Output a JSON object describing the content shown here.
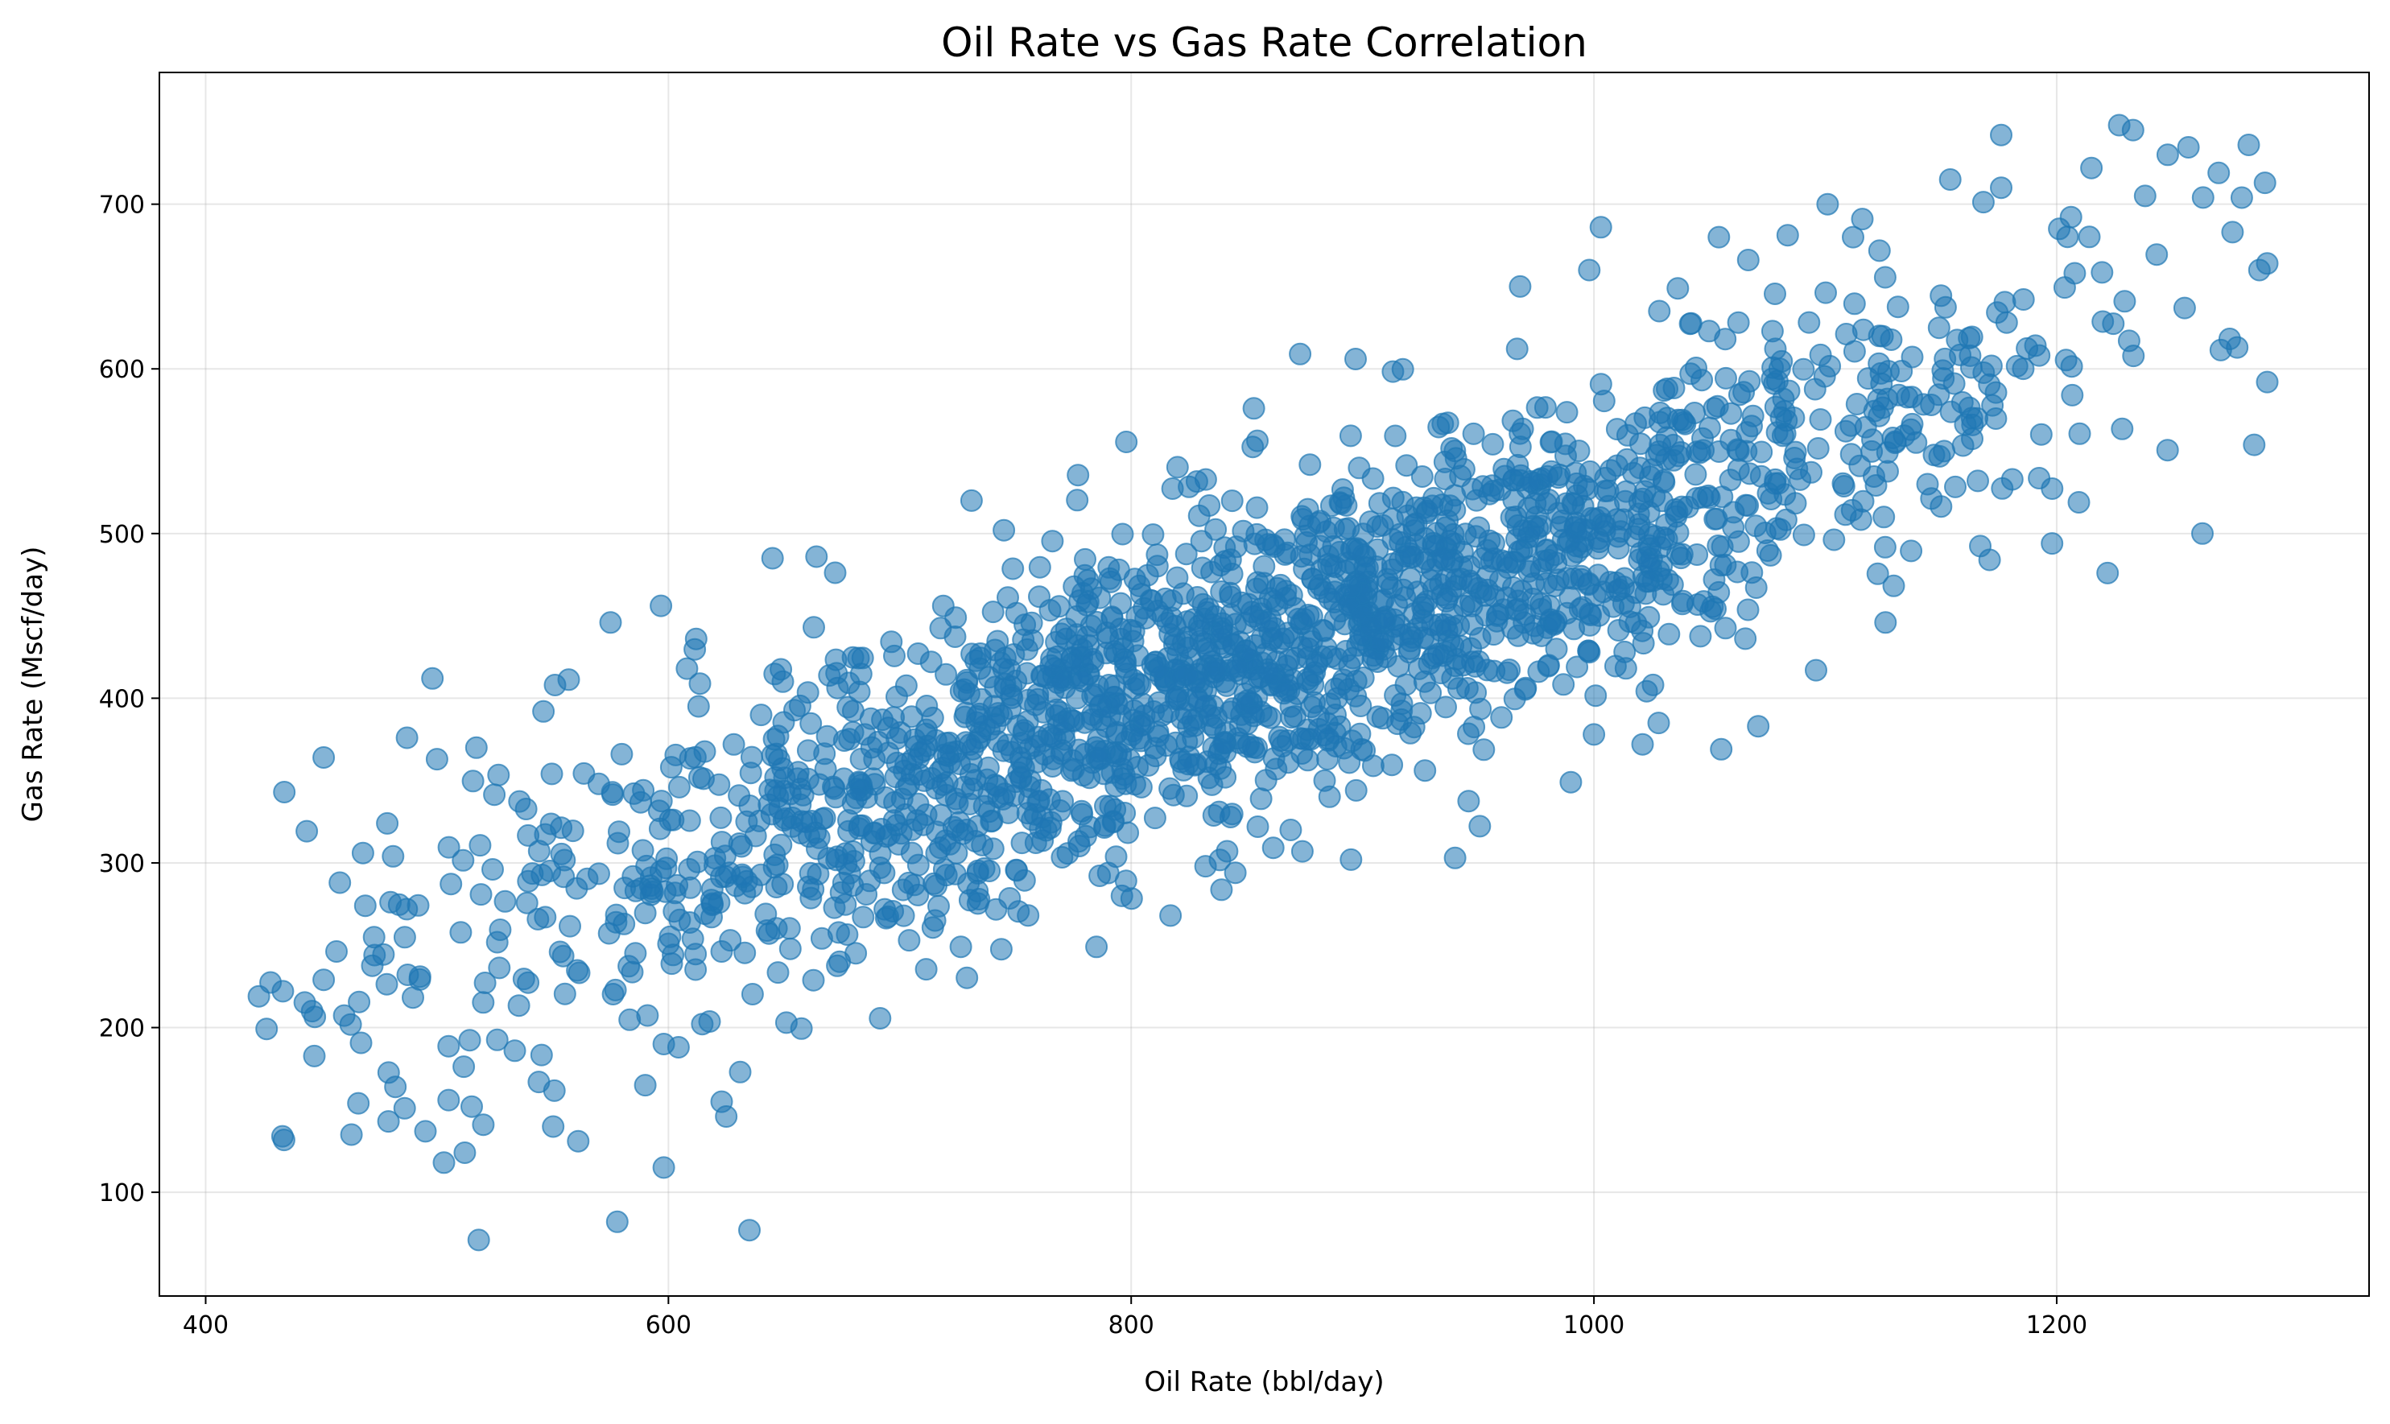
{
  "chart_data": {
    "type": "scatter",
    "title": "Oil Rate vs Gas Rate Correlation",
    "xlabel": "Oil Rate (bbl/day)",
    "ylabel": "Gas Rate (Mscf/day)",
    "xlim": [
      380,
      1335
    ],
    "ylim": [
      37,
      780
    ],
    "xticks": [
      400,
      600,
      800,
      1000,
      1200
    ],
    "yticks": [
      100,
      200,
      300,
      400,
      500,
      600,
      700
    ],
    "grid": true,
    "marker_color": "#1f77b4",
    "marker_alpha": 0.55,
    "series": [
      {
        "trend": {
          "slope": 0.5,
          "intercept": 0,
          "noise_sd": 50,
          "x_min": 420,
          "x_max": 1290,
          "n": 2000
        },
        "points": [
          {
            "x": 423,
            "y": 219
          },
          {
            "x": 434,
            "y": 343
          },
          {
            "x": 446,
            "y": 210
          },
          {
            "x": 451,
            "y": 364
          },
          {
            "x": 451,
            "y": 229
          },
          {
            "x": 458,
            "y": 288
          },
          {
            "x": 463,
            "y": 135
          },
          {
            "x": 466,
            "y": 154
          },
          {
            "x": 468,
            "y": 306
          },
          {
            "x": 469,
            "y": 274
          },
          {
            "x": 473,
            "y": 244
          },
          {
            "x": 479,
            "y": 143
          },
          {
            "x": 481,
            "y": 304
          },
          {
            "x": 482,
            "y": 164
          },
          {
            "x": 486,
            "y": 151
          },
          {
            "x": 487,
            "y": 376
          },
          {
            "x": 495,
            "y": 137
          },
          {
            "x": 498,
            "y": 412
          },
          {
            "x": 500,
            "y": 363
          },
          {
            "x": 503,
            "y": 118
          },
          {
            "x": 505,
            "y": 156
          },
          {
            "x": 512,
            "y": 124
          },
          {
            "x": 515,
            "y": 152
          },
          {
            "x": 517,
            "y": 370
          },
          {
            "x": 518,
            "y": 71
          },
          {
            "x": 520,
            "y": 141
          },
          {
            "x": 544,
            "y": 167
          },
          {
            "x": 546,
            "y": 392
          },
          {
            "x": 551,
            "y": 408
          },
          {
            "x": 561,
            "y": 131
          },
          {
            "x": 575,
            "y": 446
          },
          {
            "x": 590,
            "y": 165
          },
          {
            "x": 598,
            "y": 115
          },
          {
            "x": 598,
            "y": 190
          },
          {
            "x": 608,
            "y": 418
          },
          {
            "x": 612,
            "y": 436
          },
          {
            "x": 623,
            "y": 155
          },
          {
            "x": 625,
            "y": 146
          },
          {
            "x": 631,
            "y": 173
          },
          {
            "x": 635,
            "y": 77
          },
          {
            "x": 645,
            "y": 485
          },
          {
            "x": 651,
            "y": 203
          },
          {
            "x": 664,
            "y": 486
          },
          {
            "x": 731,
            "y": 520
          },
          {
            "x": 745,
            "y": 502
          },
          {
            "x": 785,
            "y": 249
          },
          {
            "x": 796,
            "y": 280
          },
          {
            "x": 817,
            "y": 268
          },
          {
            "x": 845,
            "y": 294
          },
          {
            "x": 853,
            "y": 576
          },
          {
            "x": 873,
            "y": 609
          },
          {
            "x": 874,
            "y": 307
          },
          {
            "x": 895,
            "y": 302
          },
          {
            "x": 897,
            "y": 606
          },
          {
            "x": 940,
            "y": 303
          },
          {
            "x": 990,
            "y": 349
          },
          {
            "x": 998,
            "y": 660
          },
          {
            "x": 1000,
            "y": 378
          },
          {
            "x": 1003,
            "y": 686
          },
          {
            "x": 1021,
            "y": 372
          },
          {
            "x": 1054,
            "y": 680
          },
          {
            "x": 1055,
            "y": 369
          },
          {
            "x": 1071,
            "y": 383
          },
          {
            "x": 1096,
            "y": 417
          },
          {
            "x": 1101,
            "y": 700
          },
          {
            "x": 1112,
            "y": 680
          },
          {
            "x": 1116,
            "y": 691
          },
          {
            "x": 1126,
            "y": 446
          },
          {
            "x": 1154,
            "y": 715
          },
          {
            "x": 1171,
            "y": 484
          },
          {
            "x": 1176,
            "y": 742
          },
          {
            "x": 1176,
            "y": 710
          },
          {
            "x": 1198,
            "y": 494
          },
          {
            "x": 1215,
            "y": 722
          },
          {
            "x": 1222,
            "y": 476
          },
          {
            "x": 1227,
            "y": 748
          },
          {
            "x": 1233,
            "y": 745
          },
          {
            "x": 1248,
            "y": 730
          },
          {
            "x": 1263,
            "y": 500
          },
          {
            "x": 1270,
            "y": 719
          },
          {
            "x": 1283,
            "y": 736
          },
          {
            "x": 1290,
            "y": 713
          },
          {
            "x": 1291,
            "y": 664
          },
          {
            "x": 1291,
            "y": 592
          },
          {
            "x": 1280,
            "y": 704
          },
          {
            "x": 1276,
            "y": 683
          },
          {
            "x": 1278,
            "y": 613
          }
        ]
      }
    ]
  }
}
